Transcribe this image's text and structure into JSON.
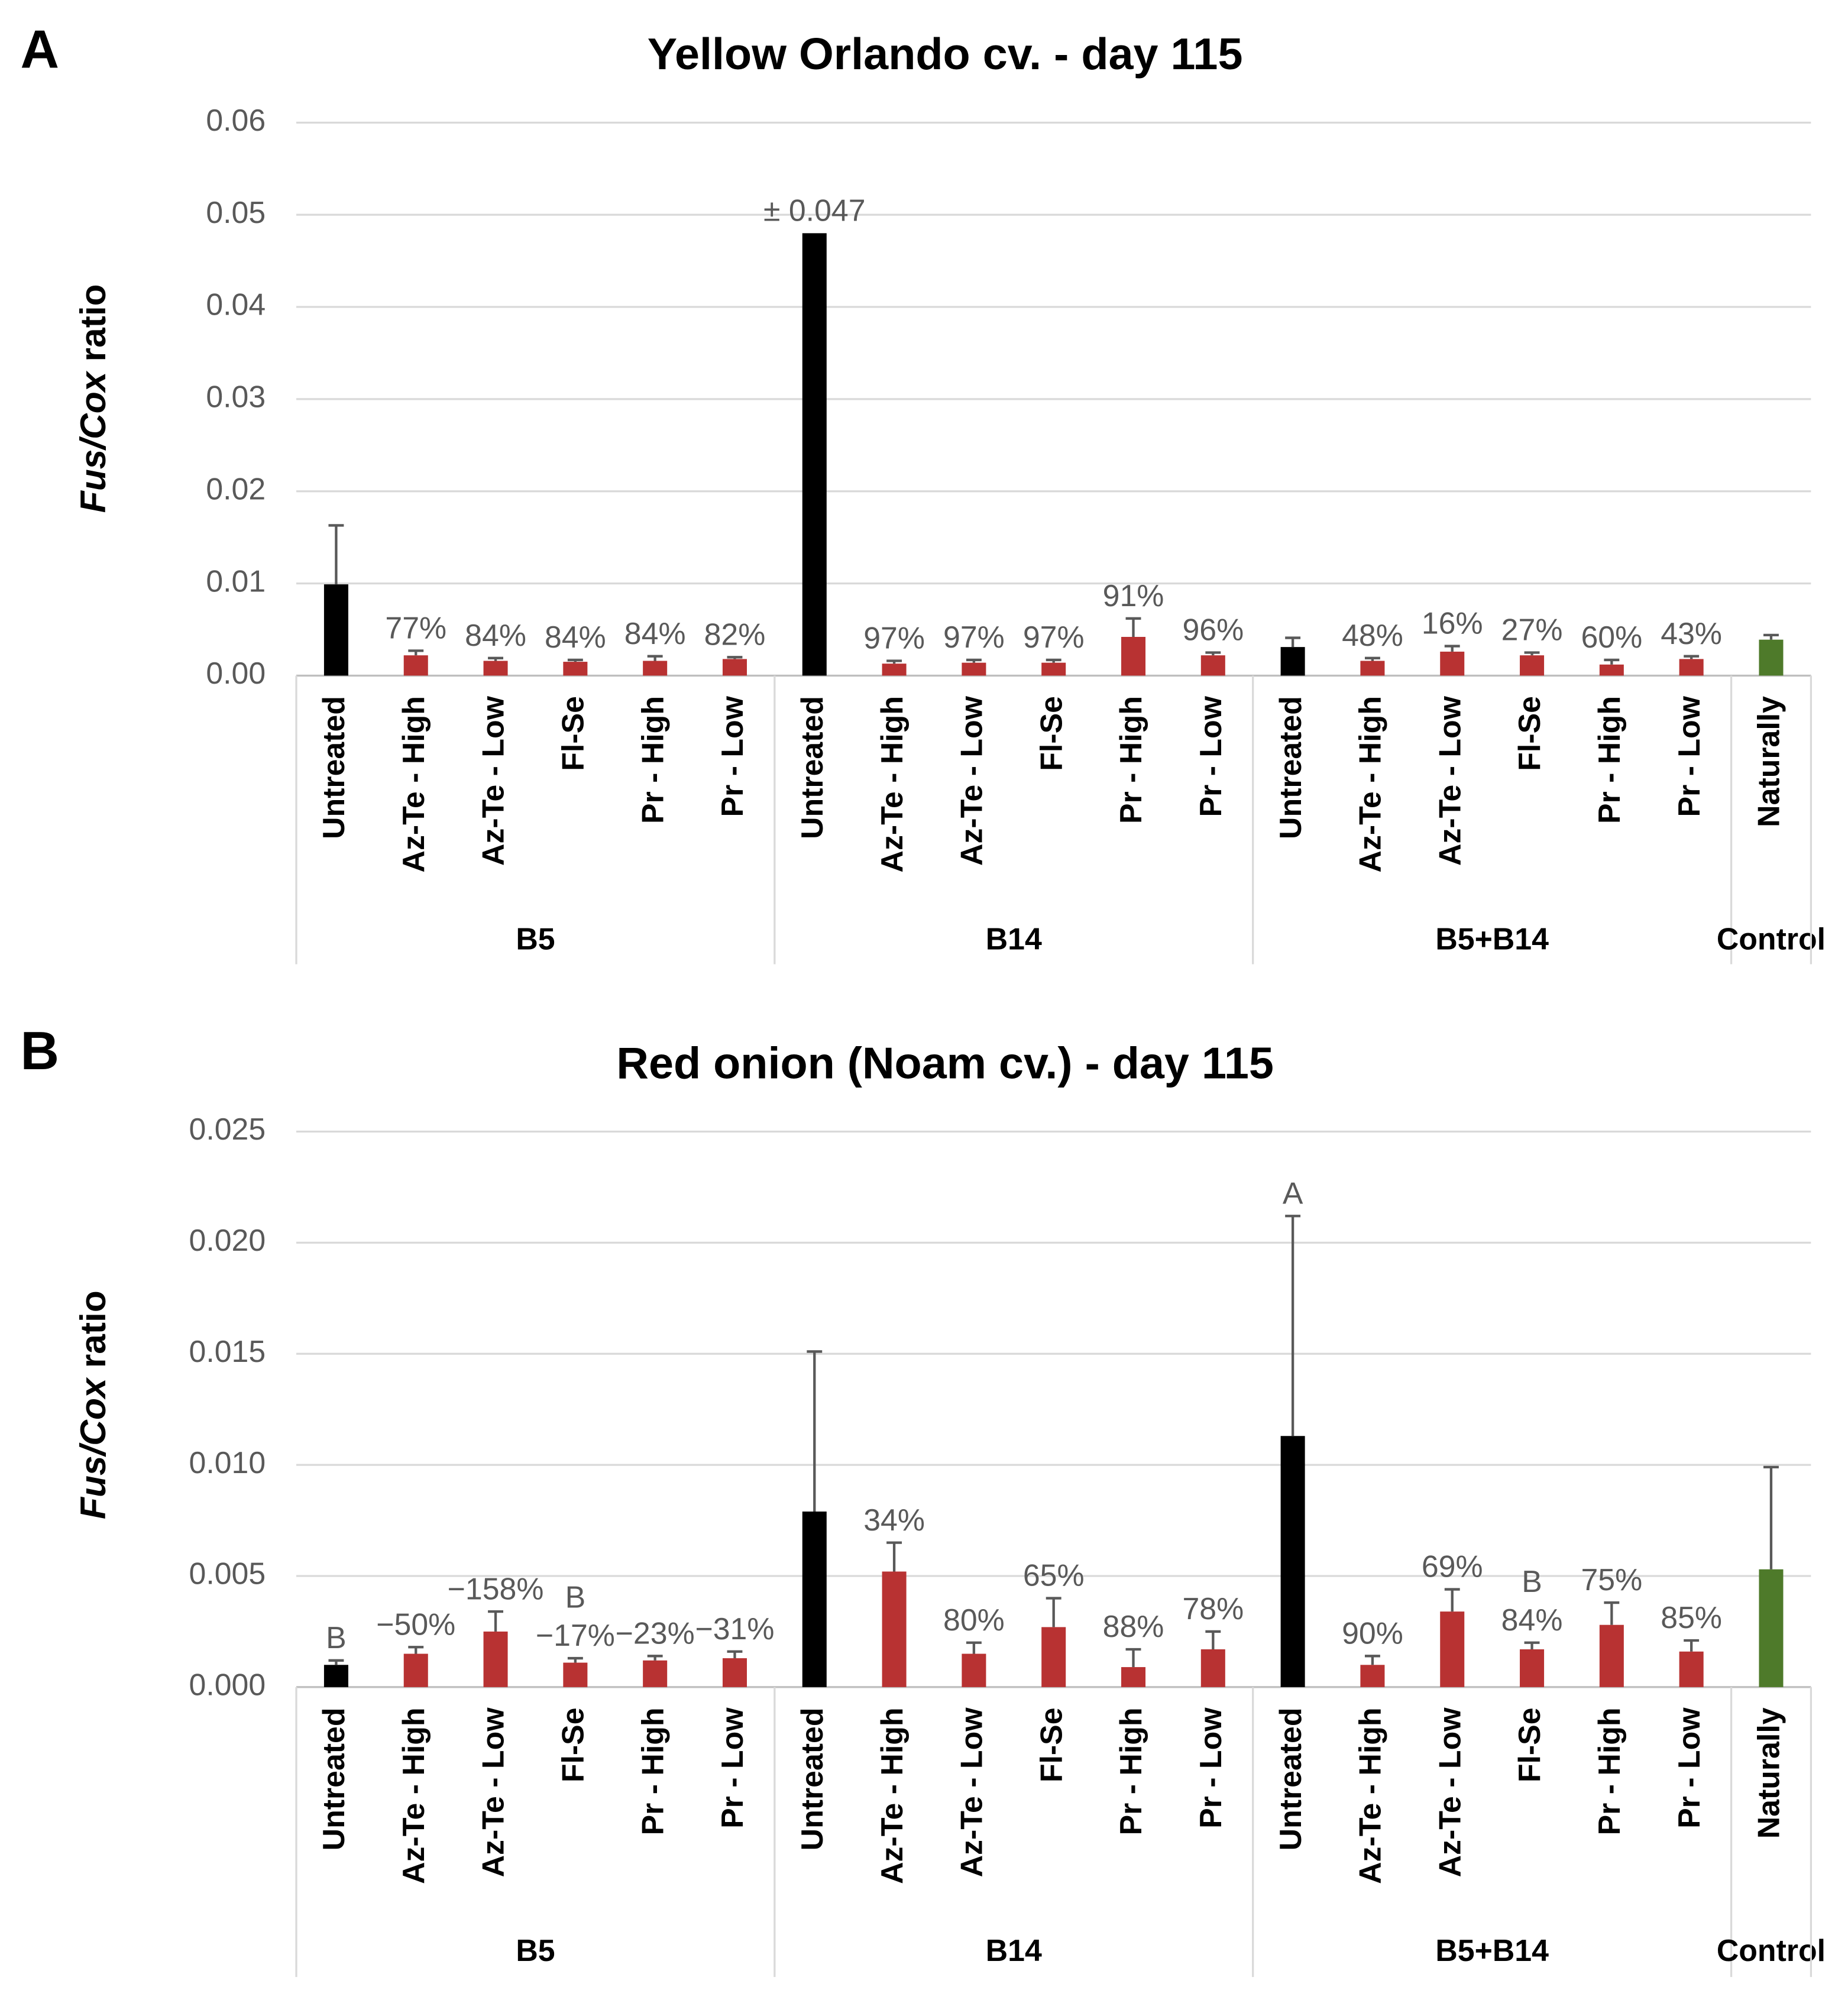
{
  "chart_data": [
    {
      "type": "bar",
      "panel": "A",
      "title": "Yellow Orlando cv. - day 115",
      "ylabel": {
        "italic": "Fus/Cox",
        "text": "ratio"
      },
      "groups": [
        {
          "name": "B5",
          "categories": [
            "Untreated",
            "Az-Te - High",
            "Az-Te - Low",
            "Fl-Se",
            "Pr - High",
            "Pr - Low"
          ]
        },
        {
          "name": "B14",
          "categories": [
            "Untreated",
            "Az-Te - High",
            "Az-Te - Low",
            "Fl-Se",
            "Pr - High",
            "Pr - Low"
          ]
        },
        {
          "name": "B5+B14",
          "categories": [
            "Untreated",
            "Az-Te - High",
            "Az-Te - Low",
            "Fl-Se",
            "Pr - High",
            "Pr - Low"
          ]
        },
        {
          "name": "Control",
          "categories": [
            "Naturally"
          ]
        }
      ],
      "values": [
        0.0099,
        0.0022,
        0.0016,
        0.0015,
        0.0016,
        0.0018,
        0.048,
        0.0013,
        0.0014,
        0.0014,
        0.0042,
        0.0022,
        0.0031,
        0.0016,
        0.0026,
        0.0022,
        0.0012,
        0.0018,
        0.0039
      ],
      "errors": [
        0.0064,
        0.0005,
        0.0003,
        0.0002,
        0.0005,
        0.0002,
        null,
        0.0003,
        0.0003,
        0.0003,
        0.002,
        0.0003,
        0.001,
        0.0003,
        0.0006,
        0.0003,
        0.0005,
        0.0003,
        0.0005
      ],
      "colors": [
        "#000000",
        "#b83232",
        "#b83232",
        "#b83232",
        "#b83232",
        "#b83232",
        "#000000",
        "#b83232",
        "#b83232",
        "#b83232",
        "#b83232",
        "#b83232",
        "#000000",
        "#b83232",
        "#b83232",
        "#b83232",
        "#b83232",
        "#b83232",
        "#4e7a2a"
      ],
      "annotations": [
        null,
        "77%",
        "84%",
        "84%",
        "84%",
        "82%",
        "± 0.047",
        "97%",
        "97%",
        "97%",
        "91%",
        "96%",
        null,
        "48%",
        "16%",
        "27%",
        "60%",
        "43%",
        null
      ],
      "letters": [
        null,
        null,
        null,
        null,
        null,
        null,
        null,
        null,
        null,
        null,
        null,
        null,
        null,
        null,
        null,
        null,
        null,
        null,
        null
      ],
      "ylim": [
        0,
        0.06
      ],
      "yticks": [
        {
          "value": 0,
          "label": "0.00"
        },
        0.01,
        0.02,
        0.03,
        0.04,
        0.05,
        0.06
      ],
      "grid": true
    },
    {
      "type": "bar",
      "panel": "B",
      "title": "Red onion (Noam cv.) - day 115",
      "ylabel": {
        "italic": "Fus/Cox",
        "text": "ratio"
      },
      "groups": [
        {
          "name": "B5",
          "categories": [
            "Untreated",
            "Az-Te - High",
            "Az-Te - Low",
            "Fl-Se",
            "Pr - High",
            "Pr - Low"
          ]
        },
        {
          "name": "B14",
          "categories": [
            "Untreated",
            "Az-Te - High",
            "Az-Te - Low",
            "Fl-Se",
            "Pr - High",
            "Pr - Low"
          ]
        },
        {
          "name": "B5+B14",
          "categories": [
            "Untreated",
            "Az-Te - High",
            "Az-Te - Low",
            "Fl-Se",
            "Pr - High",
            "Pr - Low"
          ]
        },
        {
          "name": "Control",
          "categories": [
            "Naturally"
          ]
        }
      ],
      "values": [
        0.001,
        0.0015,
        0.0025,
        0.0011,
        0.0012,
        0.0013,
        0.0079,
        0.0052,
        0.0015,
        0.0027,
        0.0009,
        0.0017,
        0.0113,
        0.001,
        0.0034,
        0.0017,
        0.0028,
        0.0016,
        0.0053
      ],
      "errors": [
        0.0002,
        0.0003,
        0.0009,
        0.0002,
        0.0002,
        0.0003,
        0.0072,
        0.0013,
        0.0005,
        0.0013,
        0.0008,
        0.0008,
        0.0099,
        0.0004,
        0.001,
        0.0003,
        0.001,
        0.0005,
        0.0046
      ],
      "colors": [
        "#000000",
        "#b83232",
        "#b83232",
        "#b83232",
        "#b83232",
        "#b83232",
        "#000000",
        "#b83232",
        "#b83232",
        "#b83232",
        "#b83232",
        "#b83232",
        "#000000",
        "#b83232",
        "#b83232",
        "#b83232",
        "#b83232",
        "#b83232",
        "#4e7a2a"
      ],
      "annotations": [
        null,
        "−50%",
        "−158%",
        "−17%",
        "−23%",
        "−31%",
        null,
        "34%",
        "80%",
        "65%",
        "88%",
        "78%",
        null,
        "90%",
        "69%",
        "84%",
        "75%",
        "85%",
        null
      ],
      "letters": [
        "B",
        null,
        null,
        "B",
        null,
        null,
        null,
        null,
        null,
        null,
        null,
        null,
        "A",
        null,
        null,
        "B",
        null,
        null,
        null
      ],
      "ylim": [
        0,
        0.025
      ],
      "yticks": [
        {
          "value": 0,
          "label": "0.000"
        },
        0.005,
        {
          "value": 0.01,
          "label": "0.010"
        },
        0.015,
        {
          "value": 0.02,
          "label": "0.020"
        },
        0.025
      ],
      "grid": true
    }
  ]
}
